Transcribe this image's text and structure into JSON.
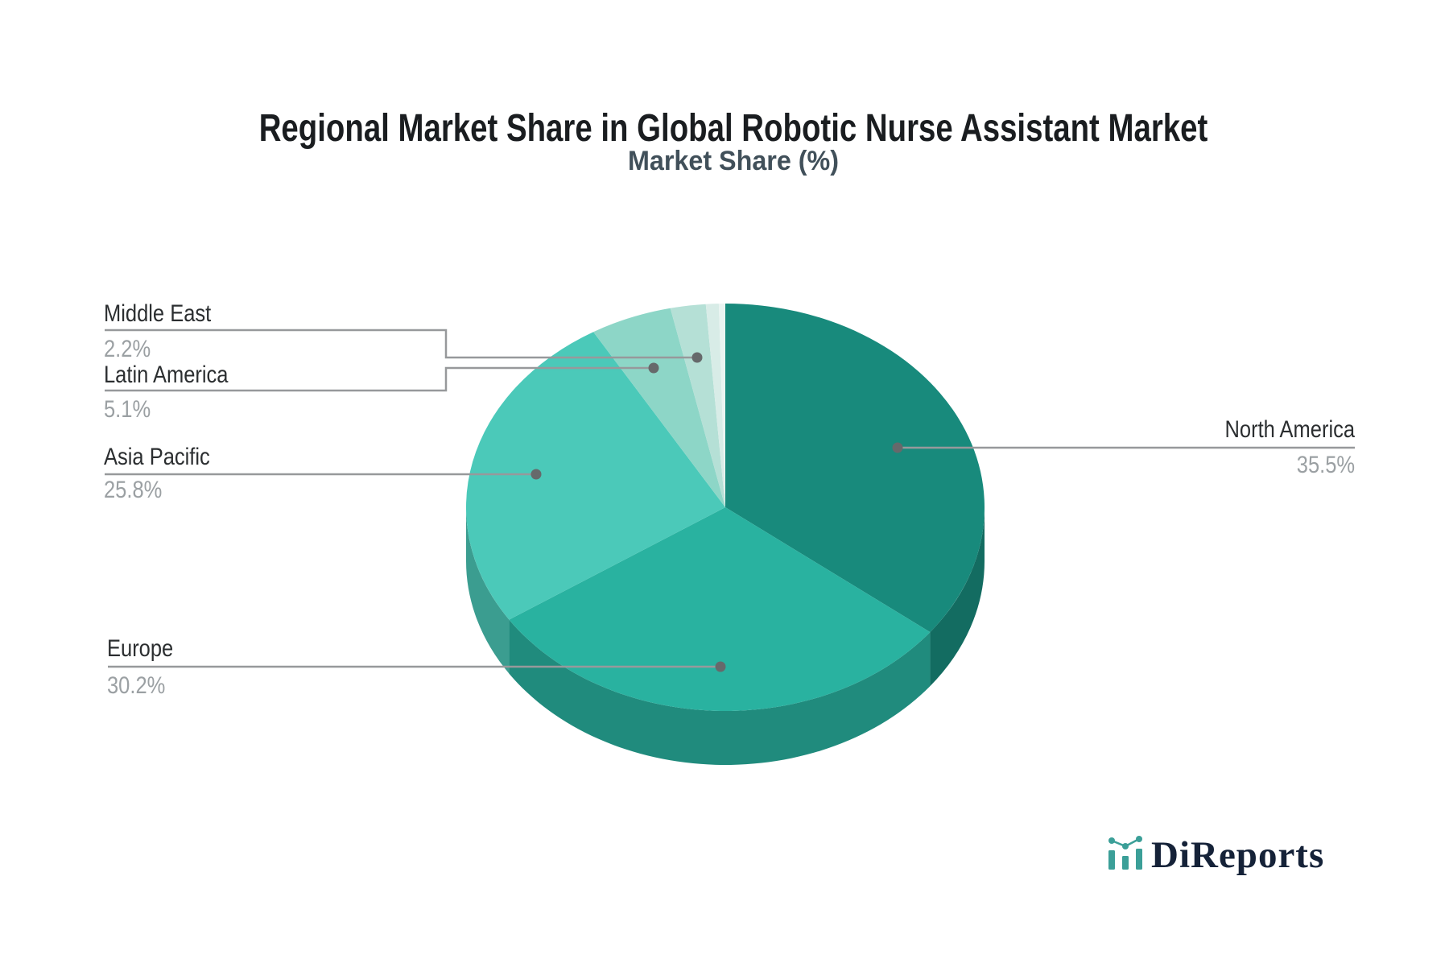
{
  "title": "Regional Market Share in Global Robotic Nurse Assistant Market",
  "subtitle": "Market Share (%)",
  "logo": {
    "text": "DiReports",
    "icon_color": "#3b9f98",
    "text_color": "#152238"
  },
  "style_colors": {
    "leader_line": "#97999b",
    "anchor_dot": "#66696b",
    "label_text": "#2b2e30",
    "percent_text": "#9ba0a3"
  },
  "chart_data": {
    "type": "pie",
    "style": "3d",
    "title": "Regional Market Share in Global Robotic Nurse Assistant Market",
    "subtitle": "Market Share (%)",
    "unit": "%",
    "start_angle": "12 o'clock, clockwise",
    "slices": [
      {
        "label": "North America",
        "value": 35.5,
        "display": "35.5%",
        "color": "#188a7c"
      },
      {
        "label": "Europe",
        "value": 30.2,
        "display": "30.2%",
        "color": "#29b2a0"
      },
      {
        "label": "Asia Pacific",
        "value": 25.8,
        "display": "25.8%",
        "color": "#4bc9b9"
      },
      {
        "label": "Latin America",
        "value": 5.1,
        "display": "5.1%",
        "color": "#8dd6c7"
      },
      {
        "label": "Middle East",
        "value": 2.2,
        "display": "2.2%",
        "color": "#b5e0d6"
      },
      {
        "label": "",
        "value": 0.8,
        "display": "",
        "color": "#d8ece7"
      },
      {
        "label": "",
        "value": 0.4,
        "display": "",
        "color": "#eaf4f1"
      }
    ]
  }
}
